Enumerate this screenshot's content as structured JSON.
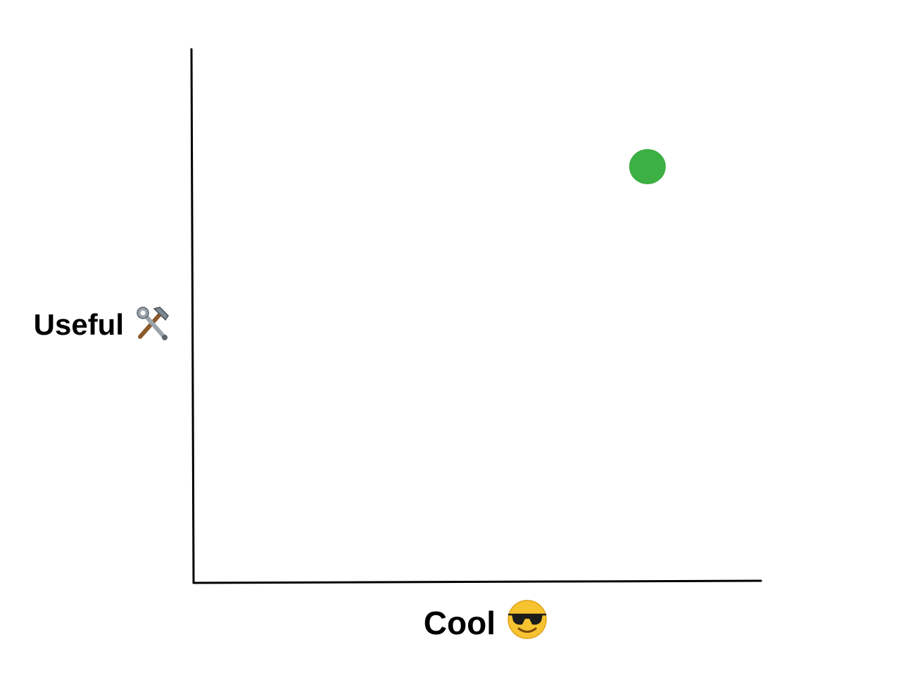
{
  "chart_data": {
    "type": "scatter",
    "title": "",
    "xlabel": "Cool",
    "ylabel": "Useful",
    "xlabel_icon": "sunglasses-face-icon",
    "ylabel_icon": "hammer-and-wrench-icon",
    "xlim": [
      0,
      1
    ],
    "ylim": [
      0,
      1
    ],
    "grid": false,
    "series": [
      {
        "color": "#3cb043",
        "points": [
          {
            "x": 0.8,
            "y": 0.78
          }
        ]
      }
    ]
  }
}
